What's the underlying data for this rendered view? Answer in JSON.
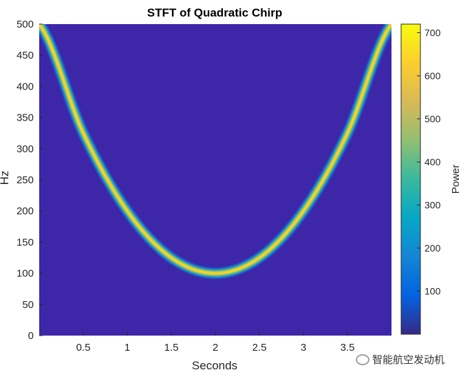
{
  "chart_data": {
    "type": "heatmap",
    "title": "STFT of Quadratic Chirp",
    "xlabel": "Seconds",
    "ylabel": "Hz",
    "xlim": [
      0,
      4
    ],
    "ylim": [
      0,
      500
    ],
    "x_ticks": [
      "0.5",
      "1",
      "1.5",
      "2",
      "2.5",
      "3",
      "3.5"
    ],
    "x_tick_values": [
      0.5,
      1,
      1.5,
      2,
      2.5,
      3,
      3.5
    ],
    "y_ticks": [
      "0",
      "50",
      "100",
      "150",
      "200",
      "250",
      "300",
      "350",
      "400",
      "450",
      "500"
    ],
    "y_tick_values": [
      0,
      50,
      100,
      150,
      200,
      250,
      300,
      350,
      400,
      450,
      500
    ],
    "ridge": {
      "description_points": [
        {
          "t": 0.0,
          "f": 500
        },
        {
          "t": 0.5,
          "f": 325
        },
        {
          "t": 1.0,
          "f": 200
        },
        {
          "t": 1.5,
          "f": 125
        },
        {
          "t": 2.0,
          "f": 100
        },
        {
          "t": 2.5,
          "f": 125
        },
        {
          "t": 3.0,
          "f": 200
        },
        {
          "t": 3.5,
          "f": 325
        },
        {
          "t": 4.0,
          "f": 500
        }
      ],
      "peak_power": 720
    },
    "colorbar": {
      "label": "Power",
      "min": 0,
      "max": 720,
      "ticks": [
        "100",
        "200",
        "300",
        "400",
        "500",
        "600",
        "700"
      ],
      "tick_values": [
        100,
        200,
        300,
        400,
        500,
        600,
        700
      ],
      "colormap": "parula",
      "background_color": "#3d26a8"
    },
    "grid": false
  },
  "watermark": {
    "text": "智能航空发动机"
  }
}
